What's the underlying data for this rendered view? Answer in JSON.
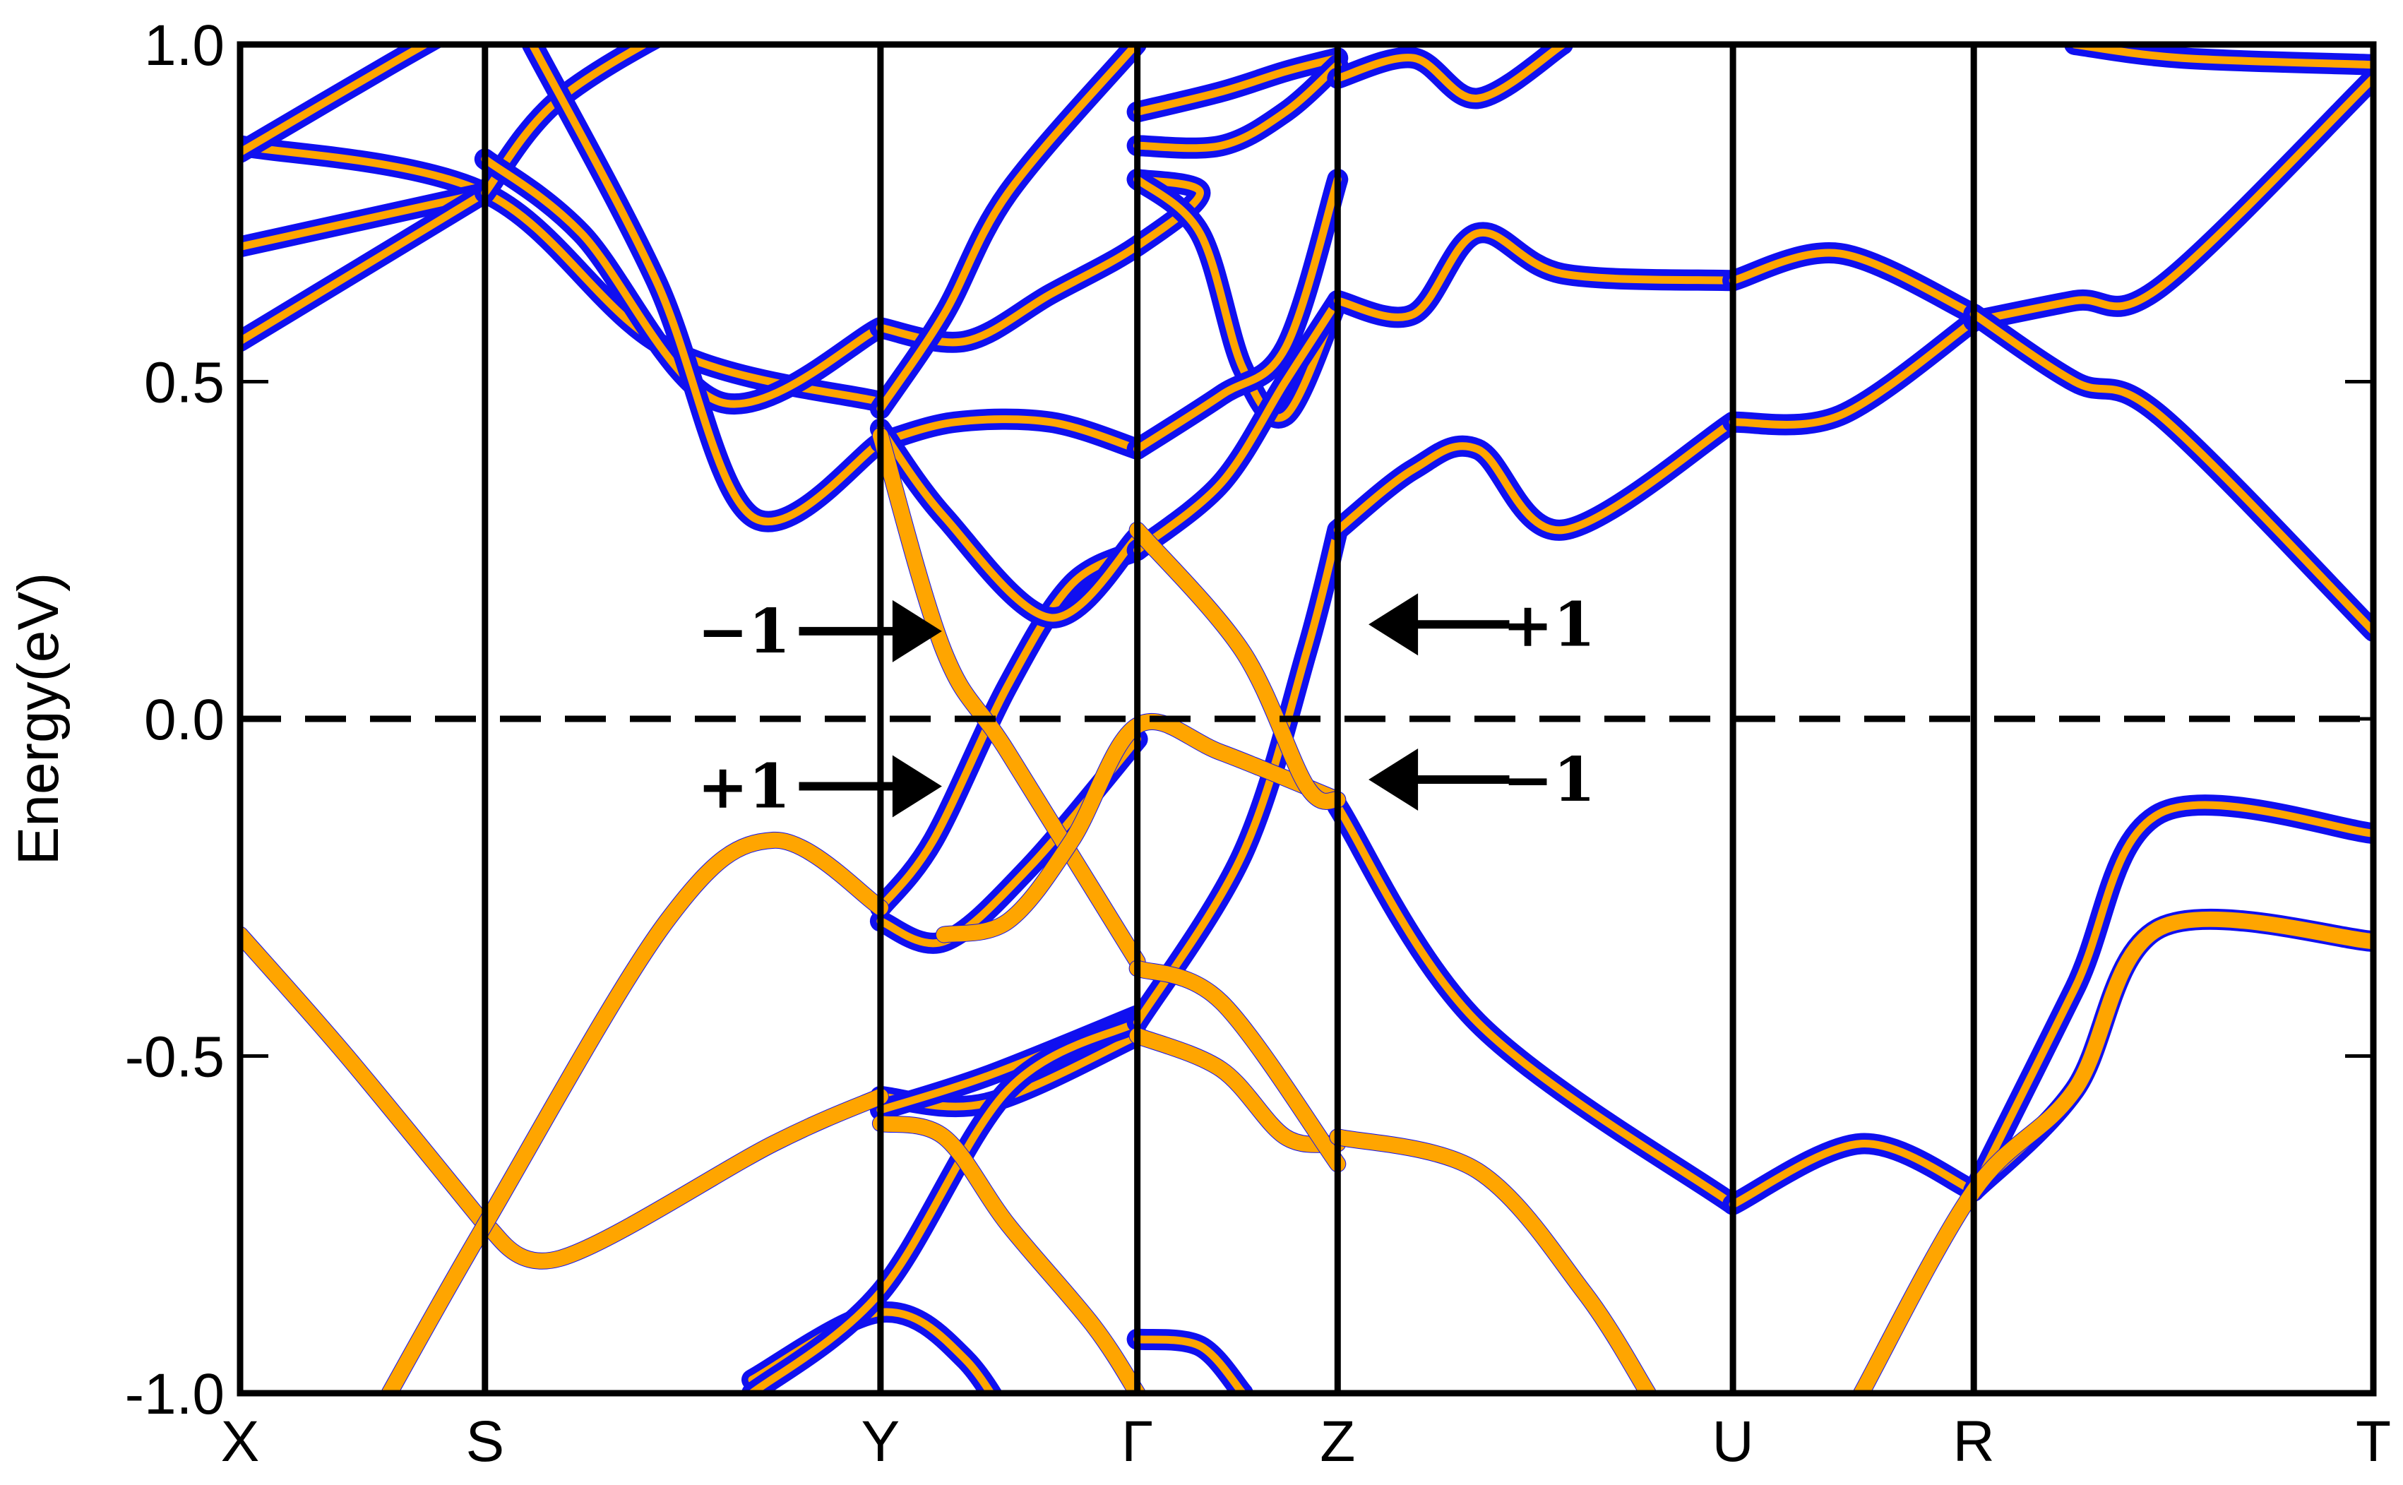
{
  "chart_data": {
    "type": "line",
    "title": "",
    "xlabel": "",
    "ylabel": "Energy(eV)",
    "ylim": [
      -1.0,
      1.0
    ],
    "yticks": [
      "1.0",
      "0.5",
      "0.0",
      "-0.5",
      "-1.0"
    ],
    "ytick_values": [
      1.0,
      0.5,
      0.0,
      -0.5,
      -1.0
    ],
    "fermi_level": 0.0,
    "kpath_labels": [
      "X",
      "S",
      "Y",
      "Γ",
      "Z",
      "U",
      "R",
      "T"
    ],
    "kpath_positions": [
      0.0,
      0.1148,
      0.3002,
      0.4206,
      0.5145,
      0.6998,
      0.8127,
      1.0
    ],
    "colors": {
      "band_outline": "#1010f0",
      "band_core": "#ffa500",
      "axis": "#000000"
    },
    "annotations": [
      {
        "text": "−1",
        "energy": 0.13,
        "arrow": "right"
      },
      {
        "text": "+1",
        "energy": -0.1,
        "arrow": "right"
      },
      {
        "text": "+1",
        "energy": 0.14,
        "arrow": "left"
      },
      {
        "text": "−1",
        "energy": -0.09,
        "arrow": "left"
      }
    ],
    "series": [
      {
        "type": "blue",
        "x": [
          0.0,
          0.1148,
          0.2,
          0.3002
        ],
        "y": [
          0.85,
          0.78,
          0.55,
          0.47
        ]
      },
      {
        "type": "blue",
        "x": [
          0.0,
          0.1148
        ],
        "y": [
          0.7,
          0.78
        ]
      },
      {
        "type": "blue",
        "x": [
          0.0,
          0.1148
        ],
        "y": [
          0.56,
          0.78
        ]
      },
      {
        "type": "blue",
        "x": [
          0.0,
          0.07,
          0.1148
        ],
        "y": [
          0.84,
          0.97,
          1.05
        ]
      },
      {
        "type": "blue",
        "x": [
          0.1148,
          0.15,
          0.22,
          0.27,
          0.3002
        ],
        "y": [
          0.78,
          0.92,
          1.05,
          1.1,
          1.1
        ]
      },
      {
        "type": "blue",
        "x": [
          0.1148,
          0.16,
          0.225,
          0.3
        ],
        "y": [
          0.83,
          0.72,
          0.47,
          0.58
        ]
      },
      {
        "type": "blue",
        "x": [
          0.137,
          0.195,
          0.24,
          0.3002
        ],
        "y": [
          1.0,
          0.65,
          0.3,
          0.41
        ]
      },
      {
        "type": "blue",
        "x": [
          0.3002,
          0.335,
          0.38,
          0.4206
        ],
        "y": [
          0.41,
          0.44,
          0.44,
          0.4
        ]
      },
      {
        "type": "blue",
        "x": [
          0.3,
          0.34,
          0.38,
          0.42,
          0.45,
          0.4206
        ],
        "y": [
          0.58,
          0.56,
          0.63,
          0.7,
          0.78,
          0.8
        ]
      },
      {
        "type": "blue",
        "x": [
          0.3002,
          0.33,
          0.36,
          0.42
        ],
        "y": [
          0.46,
          0.6,
          0.78,
          1.0
        ]
      },
      {
        "type": "blue",
        "x": [
          0.3002,
          0.325,
          0.36,
          0.39,
          0.4206
        ],
        "y": [
          -0.28,
          -0.18,
          0.05,
          0.2,
          0.25
        ]
      },
      {
        "type": "blue",
        "x": [
          0.3002,
          0.33,
          0.37,
          0.4206
        ],
        "y": [
          -0.3,
          -0.33,
          -0.22,
          -0.03
        ]
      },
      {
        "type": "blue",
        "x": [
          0.3002,
          0.33,
          0.38,
          0.4206
        ],
        "y": [
          0.43,
          0.3,
          0.15,
          0.27
        ]
      },
      {
        "type": "blue",
        "x": [
          0.3002,
          0.35,
          0.4206
        ],
        "y": [
          -0.56,
          -0.57,
          -0.47
        ]
      },
      {
        "type": "blue",
        "x": [
          0.3002,
          0.35,
          0.4206
        ],
        "y": [
          -0.58,
          -0.53,
          -0.44
        ]
      },
      {
        "type": "blue",
        "x": [
          0.24,
          0.3002,
          0.34,
          0.37
        ],
        "y": [
          -0.98,
          -0.88,
          -0.95,
          -1.1
        ]
      },
      {
        "type": "blue",
        "x": [
          0.24,
          0.3002,
          0.36,
          0.4206
        ],
        "y": [
          -1.0,
          -0.85,
          -0.55,
          -0.45
        ]
      },
      {
        "type": "blue",
        "x": [
          0.4206,
          0.45,
          0.47,
          0.49,
          0.5145
        ],
        "y": [
          0.8,
          0.72,
          0.52,
          0.45,
          0.62
        ]
      },
      {
        "type": "blue",
        "x": [
          0.4206,
          0.46,
          0.49,
          0.5145
        ],
        "y": [
          0.25,
          0.35,
          0.5,
          0.62
        ]
      },
      {
        "type": "blue",
        "x": [
          0.4206,
          0.46,
          0.49,
          0.5145
        ],
        "y": [
          0.4,
          0.48,
          0.55,
          0.8
        ]
      },
      {
        "type": "blue",
        "x": [
          0.4206,
          0.47,
          0.5,
          0.5145
        ],
        "y": [
          -0.45,
          -0.2,
          0.1,
          0.28
        ]
      },
      {
        "type": "blue",
        "x": [
          0.4206,
          0.46,
          0.49,
          0.5145
        ],
        "y": [
          0.9,
          0.93,
          0.96,
          0.98
        ]
      },
      {
        "type": "blue",
        "x": [
          0.4206,
          0.46,
          0.49,
          0.5145
        ],
        "y": [
          0.85,
          0.85,
          0.9,
          0.97
        ]
      },
      {
        "type": "blue",
        "x": [
          0.4206,
          0.45,
          0.47
        ],
        "y": [
          -0.92,
          -0.93,
          -1.0
        ]
      },
      {
        "type": "blue",
        "x": [
          0.5145,
          0.55,
          0.58,
          0.62,
          0.6998
        ],
        "y": [
          0.62,
          0.6,
          0.72,
          0.66,
          0.65
        ]
      },
      {
        "type": "blue",
        "x": [
          0.5145,
          0.55,
          0.58,
          0.62,
          0.6998
        ],
        "y": [
          0.28,
          0.37,
          0.4,
          0.28,
          0.44
        ]
      },
      {
        "type": "blue",
        "x": [
          0.5145,
          0.55,
          0.58,
          0.62
        ],
        "y": [
          0.95,
          0.98,
          0.92,
          1.0
        ]
      },
      {
        "type": "blue",
        "x": [
          0.6998,
          0.75,
          0.8127
        ],
        "y": [
          0.65,
          0.69,
          0.6
        ]
      },
      {
        "type": "blue",
        "x": [
          0.6998,
          0.75,
          0.8127
        ],
        "y": [
          0.44,
          0.45,
          0.59
        ]
      },
      {
        "type": "blue",
        "x": [
          0.8127,
          0.86,
          0.9,
          1.0
        ],
        "y": [
          0.59,
          0.62,
          0.64,
          0.95
        ]
      },
      {
        "type": "blue",
        "x": [
          0.8127,
          0.86,
          0.9,
          1.0
        ],
        "y": [
          0.6,
          0.5,
          0.45,
          0.13
        ]
      },
      {
        "type": "blue",
        "x": [
          0.86,
          0.91,
          1.0
        ],
        "y": [
          1.0,
          0.98,
          0.97
        ]
      },
      {
        "type": "blue",
        "x": [
          0.5145,
          0.58,
          0.6998
        ],
        "y": [
          -0.13,
          -0.45,
          -0.72
        ]
      },
      {
        "type": "blue",
        "x": [
          0.6998,
          0.76,
          0.8127
        ],
        "y": [
          -0.72,
          -0.63,
          -0.7
        ]
      },
      {
        "type": "blue",
        "x": [
          0.8127,
          0.86,
          0.9,
          1.0
        ],
        "y": [
          -0.7,
          -0.4,
          -0.14,
          -0.17
        ]
      },
      {
        "type": "blue",
        "x": [
          0.8127,
          0.86,
          0.9,
          1.0
        ],
        "y": [
          -0.7,
          -0.55,
          -0.31,
          -0.33
        ]
      },
      {
        "type": "orange",
        "x": [
          0.0,
          0.05,
          0.1148
        ],
        "y": [
          -0.32,
          -0.5,
          -0.75
        ]
      },
      {
        "type": "orange",
        "x": [
          0.1148,
          0.15,
          0.25,
          0.3002
        ],
        "y": [
          -0.75,
          -0.8,
          -0.63,
          -0.56
        ]
      },
      {
        "type": "orange",
        "x": [
          0.07,
          0.1148,
          0.2,
          0.25,
          0.3002
        ],
        "y": [
          -1.0,
          -0.75,
          -0.3,
          -0.18,
          -0.28
        ]
      },
      {
        "type": "orange",
        "x": [
          0.3002,
          0.33,
          0.36,
          0.4,
          0.4206
        ],
        "y": [
          -0.6,
          -0.62,
          -0.75,
          -0.9,
          -1.0
        ]
      },
      {
        "type": "orange",
        "x": [
          0.3002,
          0.33,
          0.36,
          0.4206
        ],
        "y": [
          0.42,
          0.1,
          -0.05,
          -0.36
        ]
      },
      {
        "type": "orange",
        "x": [
          0.33,
          0.36,
          0.39,
          0.4206,
          0.46,
          0.5145
        ],
        "y": [
          -0.32,
          -0.3,
          -0.18,
          -0.01,
          -0.05,
          -0.12
        ]
      },
      {
        "type": "orange",
        "x": [
          0.4206,
          0.46,
          0.49,
          0.5145
        ],
        "y": [
          -0.47,
          -0.52,
          -0.62,
          -0.63
        ]
      },
      {
        "type": "orange",
        "x": [
          0.4206,
          0.46,
          0.5145
        ],
        "y": [
          -0.37,
          -0.42,
          -0.66
        ]
      },
      {
        "type": "orange",
        "x": [
          0.5145,
          0.58,
          0.63,
          0.66
        ],
        "y": [
          -0.62,
          -0.67,
          -0.85,
          -1.0
        ]
      },
      {
        "type": "orange",
        "x": [
          0.76,
          0.8127,
          0.86,
          0.9,
          1.0
        ],
        "y": [
          -1.0,
          -0.7,
          -0.55,
          -0.31,
          -0.33
        ]
      },
      {
        "type": "orange",
        "x": [
          0.4206,
          0.47,
          0.5,
          0.5145
        ],
        "y": [
          0.28,
          0.1,
          -0.1,
          -0.12
        ]
      }
    ]
  }
}
